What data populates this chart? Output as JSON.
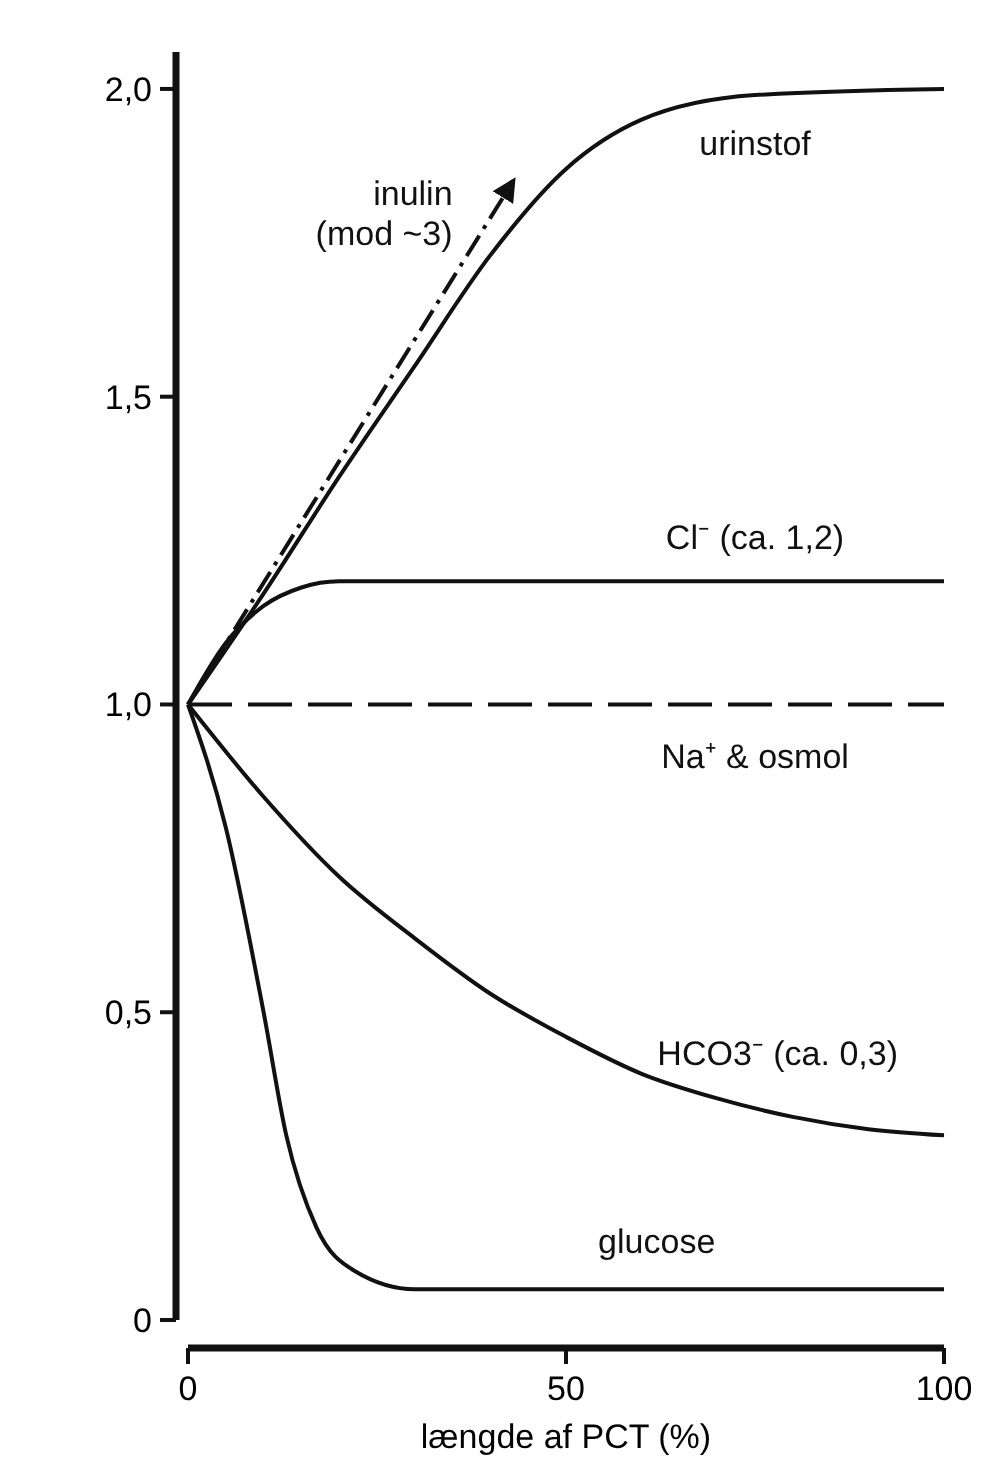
{
  "chart_data": {
    "type": "line",
    "xlabel": "længde af PCT (%)",
    "xlim": [
      0,
      100
    ],
    "xticks": [
      0,
      50,
      100
    ],
    "ylim": [
      0,
      2.06
    ],
    "yticks": [
      {
        "value": 0,
        "label": "0"
      },
      {
        "value": 0.5,
        "label": "0,5"
      },
      {
        "value": 1,
        "label": "1,0"
      },
      {
        "value": 1.5,
        "label": "1,5"
      },
      {
        "value": 2,
        "label": "2,0"
      }
    ],
    "grid": false,
    "marker": "none",
    "series": [
      {
        "name": "inulin (mod ~3)",
        "color": "#111111",
        "line_style": "dashdot",
        "x": [
          0,
          43
        ],
        "values": [
          1,
          1.85
        ]
      },
      {
        "name": "urinstof",
        "color": "#111111",
        "line_style": "solid",
        "x": [
          0,
          10,
          20,
          30,
          40,
          50,
          60,
          75,
          100
        ],
        "values": [
          1,
          1.18,
          1.37,
          1.55,
          1.73,
          1.87,
          1.95,
          1.99,
          2.0
        ]
      },
      {
        "name": "Cl⁻ (ca. 1,2)",
        "color": "#111111",
        "line_style": "solid",
        "x": [
          0,
          5,
          10,
          15,
          20,
          100
        ],
        "values": [
          1,
          1.1,
          1.16,
          1.19,
          1.2,
          1.2
        ]
      },
      {
        "name": "Na⁺ & osmol",
        "color": "#111111",
        "line_style": "dashed",
        "x": [
          0,
          100
        ],
        "values": [
          1,
          1
        ]
      },
      {
        "name": "HCO3⁻ (ca. 0,3)",
        "color": "#111111",
        "line_style": "solid",
        "x": [
          0,
          10,
          20,
          30,
          40,
          50,
          60,
          70,
          80,
          90,
          100
        ],
        "values": [
          1,
          0.85,
          0.72,
          0.62,
          0.53,
          0.46,
          0.4,
          0.36,
          0.33,
          0.31,
          0.3
        ]
      },
      {
        "name": "glucose",
        "color": "#111111",
        "line_style": "solid",
        "x": [
          0,
          5,
          10,
          13,
          17,
          22,
          30,
          100
        ],
        "values": [
          1,
          0.8,
          0.5,
          0.3,
          0.15,
          0.08,
          0.05,
          0.05
        ]
      }
    ]
  }
}
